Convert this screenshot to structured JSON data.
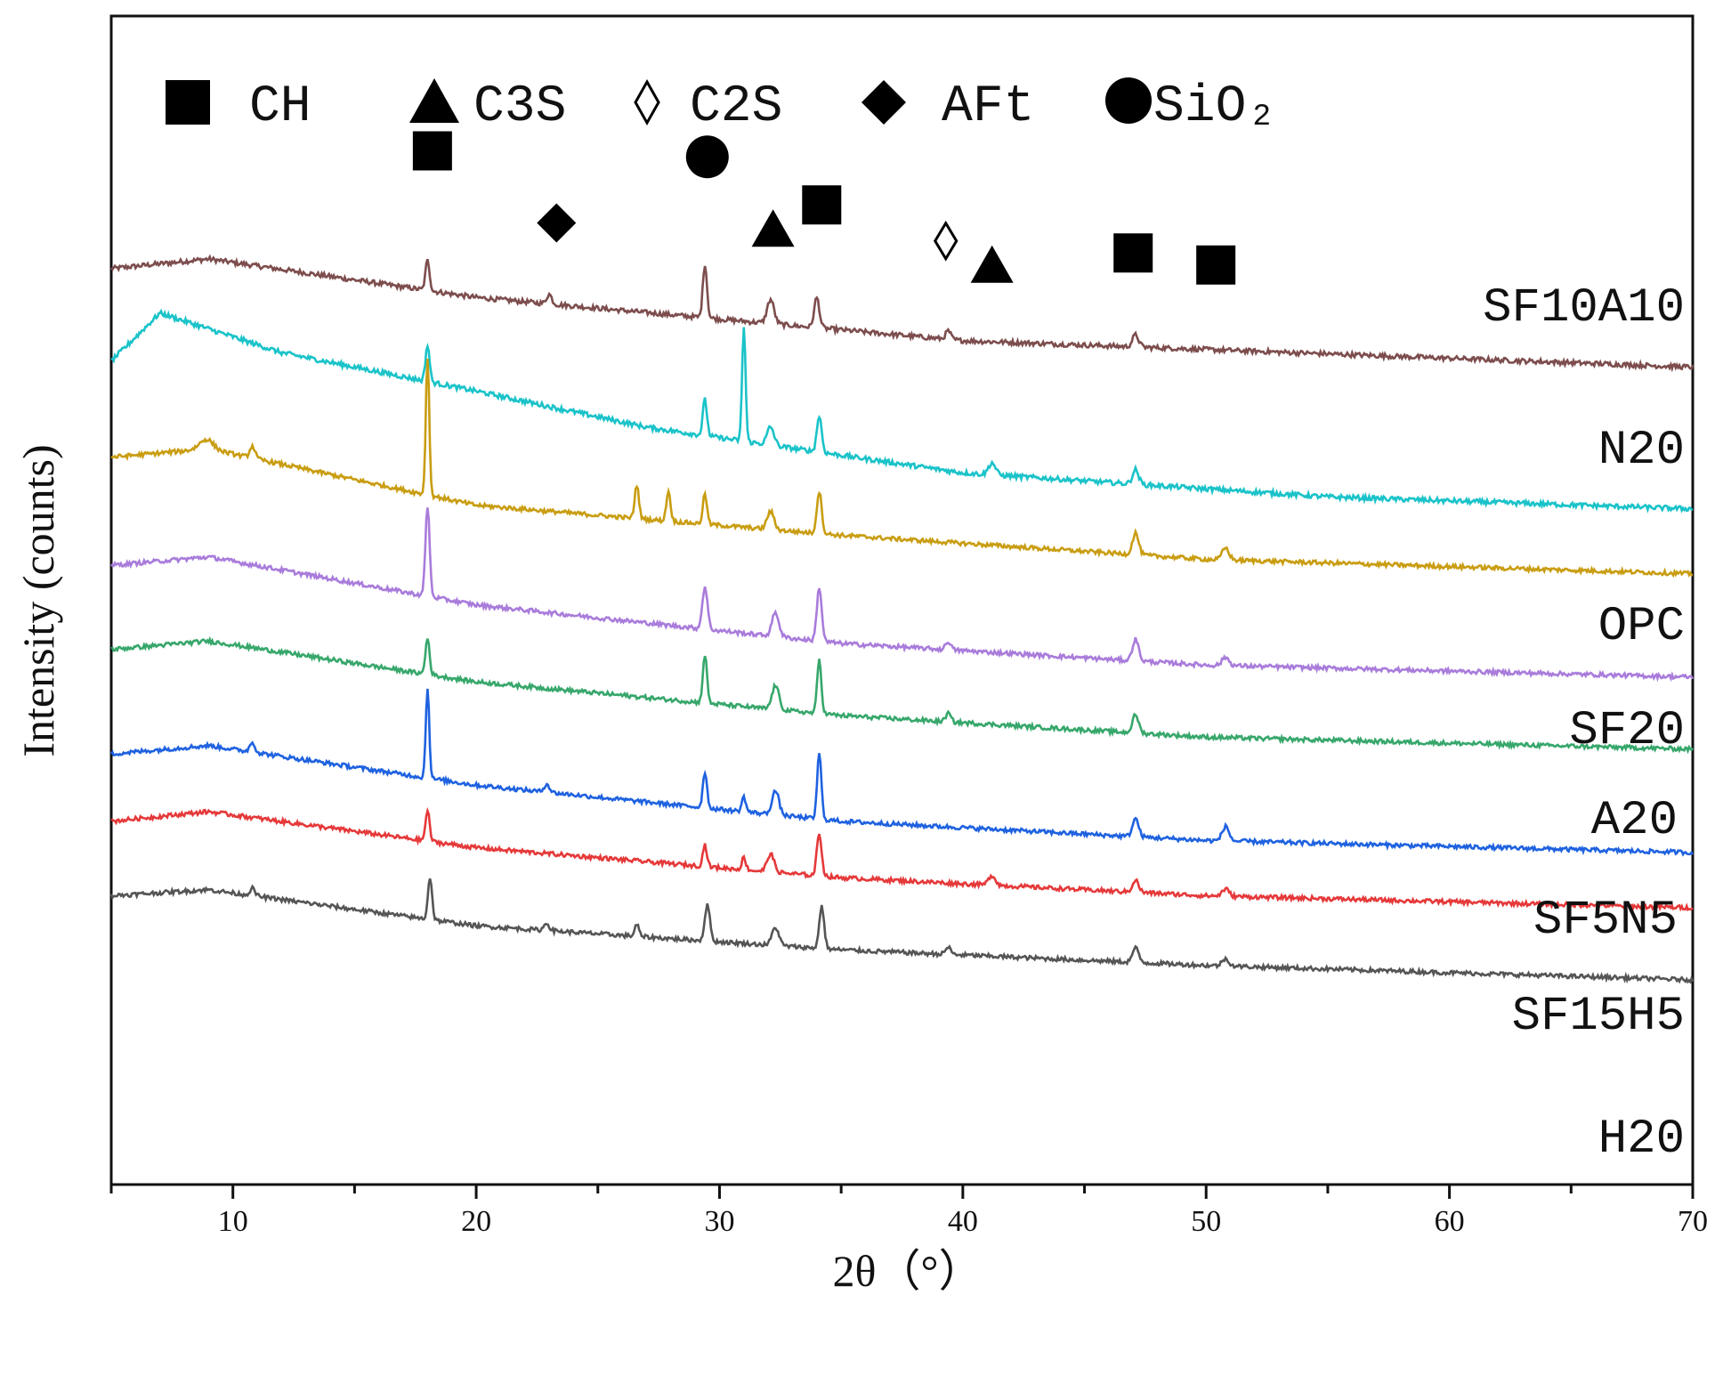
{
  "chart_data": {
    "type": "line",
    "title": "",
    "xlabel": "2θ（°）",
    "ylabel": "Intensity (counts)",
    "xlim": [
      5,
      70
    ],
    "x_ticks": [
      10,
      20,
      30,
      40,
      50,
      60,
      70
    ],
    "x_tick_labels": [
      "10",
      "20",
      "30",
      "40",
      "50",
      "60",
      "70"
    ],
    "y_ticks_shown": false,
    "legend": {
      "placement": "top",
      "entries": [
        {
          "marker": "square",
          "label": "CH"
        },
        {
          "marker": "triangle",
          "label": "C3S"
        },
        {
          "marker": "diamond-open",
          "label": "C2S"
        },
        {
          "marker": "diamond",
          "label": "AFt"
        },
        {
          "marker": "circle",
          "label": "SiO₂"
        }
      ]
    },
    "series": [
      {
        "name": "SF10A10",
        "color": "#7d4d4d",
        "baseline": [
          [
            5,
            5.32
          ],
          [
            9,
            5.4
          ],
          [
            20,
            5.08
          ],
          [
            40,
            4.72
          ],
          [
            70,
            4.5
          ]
        ],
        "peaks": [
          [
            18.0,
            0.25,
            0.12
          ],
          [
            23.0,
            0.08,
            0.15
          ],
          [
            29.4,
            0.45,
            0.12
          ],
          [
            32.1,
            0.2,
            0.2
          ],
          [
            34.0,
            0.25,
            0.15
          ],
          [
            39.4,
            0.07,
            0.15
          ],
          [
            47.1,
            0.1,
            0.18
          ]
        ],
        "noise": 0.04
      },
      {
        "name": "N20",
        "color": "#1ac3c9",
        "baseline": [
          [
            5,
            4.55
          ],
          [
            7,
            4.95
          ],
          [
            12,
            4.62
          ],
          [
            20,
            4.3
          ],
          [
            27,
            4.0
          ],
          [
            40,
            3.62
          ],
          [
            55,
            3.42
          ],
          [
            70,
            3.32
          ]
        ],
        "peaks": [
          [
            18.0,
            0.3,
            0.12
          ],
          [
            29.4,
            0.3,
            0.12
          ],
          [
            31.0,
            0.95,
            0.1
          ],
          [
            32.1,
            0.15,
            0.2
          ],
          [
            34.1,
            0.3,
            0.14
          ],
          [
            41.2,
            0.1,
            0.2
          ],
          [
            47.1,
            0.12,
            0.18
          ]
        ],
        "noise": 0.04
      },
      {
        "name": "OPC",
        "color": "#c99d12",
        "baseline": [
          [
            5,
            3.75
          ],
          [
            9,
            3.82
          ],
          [
            20,
            3.35
          ],
          [
            35,
            3.1
          ],
          [
            50,
            2.9
          ],
          [
            70,
            2.78
          ]
        ],
        "peaks": [
          [
            8.9,
            0.08,
            0.4
          ],
          [
            10.8,
            0.1,
            0.15
          ],
          [
            18.0,
            1.15,
            0.1
          ],
          [
            26.6,
            0.28,
            0.12
          ],
          [
            27.9,
            0.25,
            0.12
          ],
          [
            29.4,
            0.25,
            0.12
          ],
          [
            32.1,
            0.15,
            0.2
          ],
          [
            34.1,
            0.35,
            0.14
          ],
          [
            47.1,
            0.18,
            0.18
          ],
          [
            50.8,
            0.1,
            0.2
          ]
        ],
        "noise": 0.035
      },
      {
        "name": "SF20",
        "color": "#a97cdb",
        "baseline": [
          [
            5,
            2.85
          ],
          [
            9,
            2.92
          ],
          [
            20,
            2.52
          ],
          [
            35,
            2.2
          ],
          [
            50,
            2.02
          ],
          [
            70,
            1.92
          ]
        ],
        "peaks": [
          [
            18.0,
            0.75,
            0.12
          ],
          [
            29.4,
            0.35,
            0.15
          ],
          [
            32.3,
            0.2,
            0.2
          ],
          [
            34.1,
            0.45,
            0.14
          ],
          [
            39.4,
            0.07,
            0.15
          ],
          [
            47.1,
            0.18,
            0.18
          ],
          [
            50.8,
            0.07,
            0.2
          ]
        ],
        "noise": 0.035
      },
      {
        "name": "A20",
        "color": "#37a76b",
        "baseline": [
          [
            5,
            2.15
          ],
          [
            9,
            2.22
          ],
          [
            20,
            1.88
          ],
          [
            35,
            1.6
          ],
          [
            50,
            1.42
          ],
          [
            70,
            1.32
          ]
        ],
        "peaks": [
          [
            18.0,
            0.3,
            0.12
          ],
          [
            29.4,
            0.4,
            0.12
          ],
          [
            32.3,
            0.2,
            0.2
          ],
          [
            34.1,
            0.45,
            0.12
          ],
          [
            39.4,
            0.07,
            0.15
          ],
          [
            47.1,
            0.15,
            0.18
          ]
        ],
        "noise": 0.035
      },
      {
        "name": "SF5N5",
        "color": "#1f62e0",
        "baseline": [
          [
            5,
            1.28
          ],
          [
            9,
            1.35
          ],
          [
            20,
            1.02
          ],
          [
            35,
            0.72
          ],
          [
            50,
            0.56
          ],
          [
            70,
            0.46
          ]
        ],
        "peaks": [
          [
            10.8,
            0.08,
            0.15
          ],
          [
            18.0,
            0.75,
            0.1
          ],
          [
            22.9,
            0.07,
            0.15
          ],
          [
            29.4,
            0.3,
            0.12
          ],
          [
            31.0,
            0.12,
            0.12
          ],
          [
            32.3,
            0.2,
            0.2
          ],
          [
            34.1,
            0.55,
            0.12
          ],
          [
            47.1,
            0.15,
            0.18
          ],
          [
            50.8,
            0.12,
            0.2
          ]
        ],
        "noise": 0.035
      },
      {
        "name": "SF15H5",
        "color": "#e5393a",
        "baseline": [
          [
            5,
            0.72
          ],
          [
            9,
            0.8
          ],
          [
            20,
            0.5
          ],
          [
            35,
            0.25
          ],
          [
            50,
            0.1
          ],
          [
            70,
            0.0
          ]
        ],
        "peaks": [
          [
            18.0,
            0.25,
            0.12
          ],
          [
            29.4,
            0.18,
            0.12
          ],
          [
            31.0,
            0.1,
            0.12
          ],
          [
            32.1,
            0.15,
            0.2
          ],
          [
            34.1,
            0.35,
            0.14
          ],
          [
            41.2,
            0.08,
            0.2
          ],
          [
            47.1,
            0.1,
            0.18
          ],
          [
            50.8,
            0.06,
            0.2
          ]
        ],
        "noise": 0.035
      },
      {
        "name": "H20",
        "color": "#555555",
        "baseline": [
          [
            5,
            0.1
          ],
          [
            9,
            0.15
          ],
          [
            20,
            -0.15
          ],
          [
            35,
            -0.35
          ],
          [
            50,
            -0.48
          ],
          [
            70,
            -0.6
          ]
        ],
        "peaks": [
          [
            10.8,
            0.06,
            0.15
          ],
          [
            18.1,
            0.35,
            0.12
          ],
          [
            22.9,
            0.06,
            0.15
          ],
          [
            26.6,
            0.1,
            0.12
          ],
          [
            29.5,
            0.3,
            0.15
          ],
          [
            32.3,
            0.15,
            0.2
          ],
          [
            34.2,
            0.35,
            0.14
          ],
          [
            39.4,
            0.06,
            0.15
          ],
          [
            47.1,
            0.12,
            0.18
          ],
          [
            50.8,
            0.06,
            0.2
          ]
        ],
        "noise": 0.035
      }
    ],
    "annotation_markers": [
      {
        "marker": "square",
        "x": 18.2,
        "y": 6.3
      },
      {
        "marker": "diamond",
        "x": 23.3,
        "y": 5.7
      },
      {
        "marker": "circle",
        "x": 29.5,
        "y": 6.25
      },
      {
        "marker": "triangle",
        "x": 32.2,
        "y": 5.65
      },
      {
        "marker": "square",
        "x": 34.2,
        "y": 5.85
      },
      {
        "marker": "diamond-open",
        "x": 39.3,
        "y": 5.55
      },
      {
        "marker": "triangle",
        "x": 41.2,
        "y": 5.35
      },
      {
        "marker": "square",
        "x": 47.0,
        "y": 5.45
      },
      {
        "marker": "square",
        "x": 50.4,
        "y": 5.35
      }
    ]
  }
}
